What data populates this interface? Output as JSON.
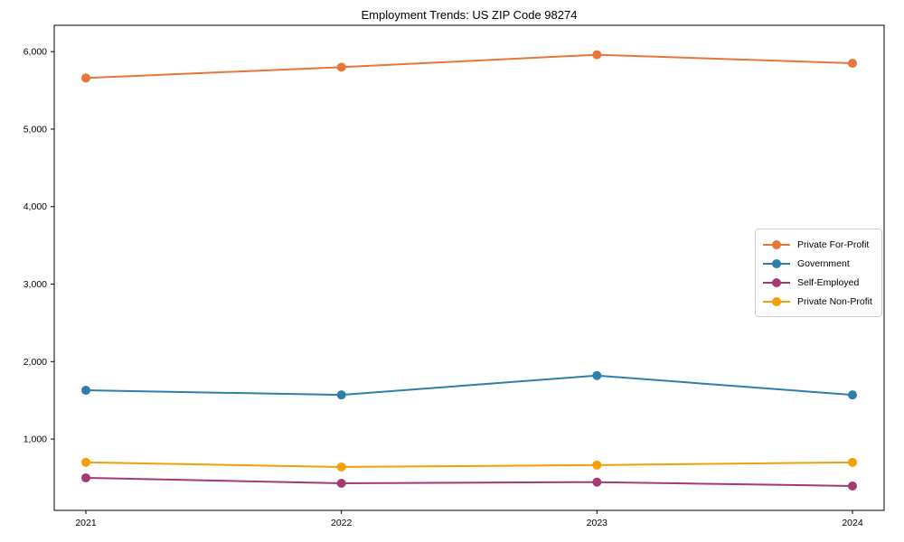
{
  "chart_data": {
    "type": "line",
    "title": "Employment Trends: US ZIP Code 98274",
    "categories": [
      "2021",
      "2022",
      "2023",
      "2024"
    ],
    "series": [
      {
        "name": "Private For-Profit",
        "color": "#E8763B",
        "values": [
          5660,
          5800,
          5960,
          5850
        ]
      },
      {
        "name": "Government",
        "color": "#2E7FA8",
        "values": [
          1630,
          1570,
          1820,
          1570
        ]
      },
      {
        "name": "Self-Employed",
        "color": "#A23B72",
        "values": [
          500,
          430,
          445,
          395
        ]
      },
      {
        "name": "Private Non-Profit",
        "color": "#F2A007",
        "values": [
          700,
          640,
          665,
          700
        ]
      }
    ],
    "xlabel": "",
    "ylabel": "",
    "ylim": [
      80,
      6340
    ],
    "y_ticks": [
      {
        "value": 1000,
        "label": "1,000"
      },
      {
        "value": 2000,
        "label": "2,000"
      },
      {
        "value": 3000,
        "label": "3,000"
      },
      {
        "value": 4000,
        "label": "4,000"
      },
      {
        "value": 5000,
        "label": "5,000"
      },
      {
        "value": 6000,
        "label": "6,000"
      }
    ],
    "grid": false,
    "marker": "circle",
    "legend_position": "center right",
    "axis_color": "#000000"
  }
}
